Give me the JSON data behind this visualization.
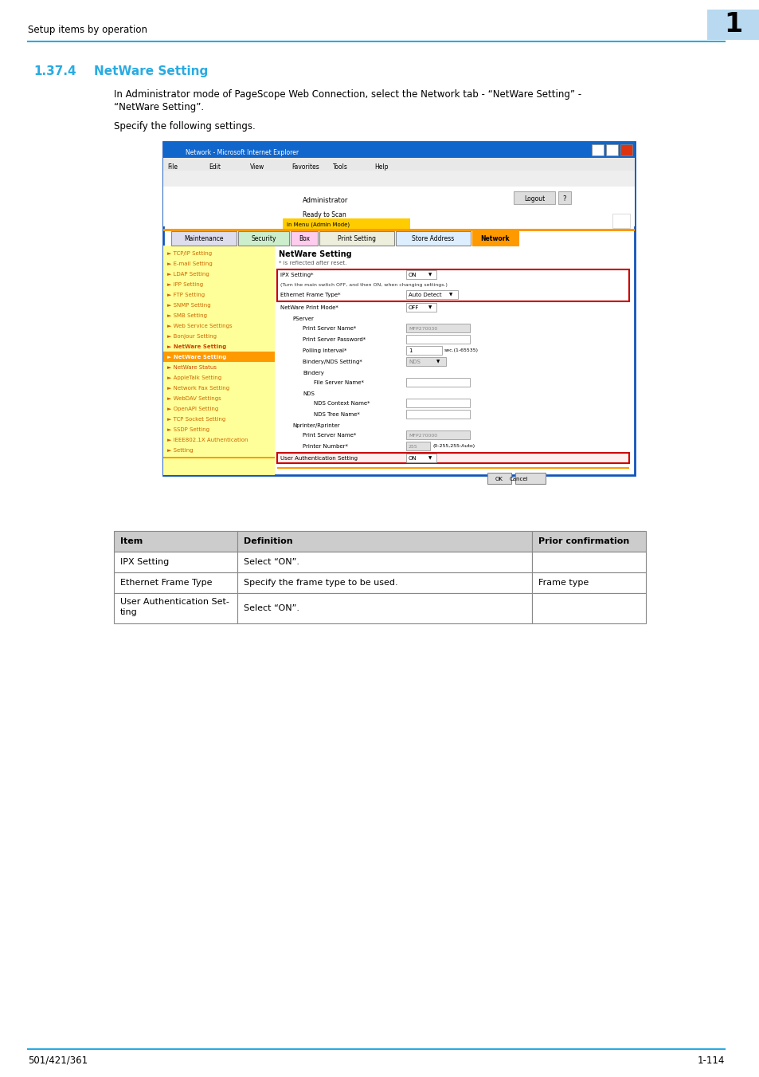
{
  "page_header_text": "Setup items by operation",
  "page_number_box_color": "#b8d9f0",
  "page_number": "1",
  "section_number": "1.37.4",
  "section_title": "NetWare Setting",
  "section_color": "#29abe2",
  "body_text_line1": "In Administrator mode of PageScope Web Connection, select the Network tab - “NetWare Setting” -",
  "body_text_line2": "“NetWare Setting”.",
  "body_text_line3": "Specify the following settings.",
  "footer_left": "501/421/361",
  "footer_right": "1-114",
  "header_line_color": "#29abe2",
  "footer_line_color": "#29abe2",
  "table_header_bg": "#cccccc",
  "table_col1_header": "Item",
  "table_col2_header": "Definition",
  "table_col3_header": "Prior confirmation",
  "table_rows": [
    [
      "IPX Setting",
      "Select “ON”.",
      ""
    ],
    [
      "Ethernet Frame Type",
      "Specify the frame type to be used.",
      "Frame type"
    ],
    [
      "User Authentication Set-\nting",
      "Select “ON”.",
      ""
    ]
  ]
}
